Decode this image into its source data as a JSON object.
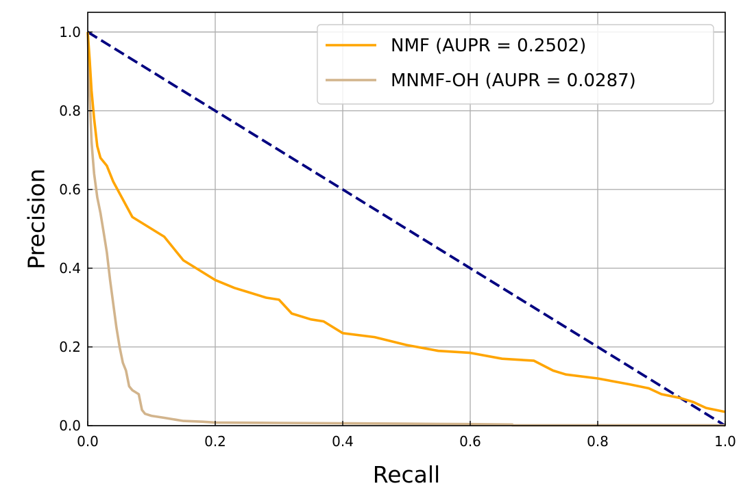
{
  "chart_data": {
    "type": "line",
    "title": "",
    "xlabel": "Recall",
    "ylabel": "Precision",
    "xlim": [
      0.0,
      1.0
    ],
    "ylim": [
      0.0,
      1.05
    ],
    "x_ticks": [
      0.0,
      0.2,
      0.4,
      0.6,
      0.8,
      1.0
    ],
    "y_ticks": [
      0.0,
      0.2,
      0.4,
      0.6,
      0.8,
      1.0
    ],
    "x_tick_labels": [
      "0.0",
      "0.2",
      "0.4",
      "0.6",
      "0.8",
      "1.0"
    ],
    "y_tick_labels": [
      "0.0",
      "0.2",
      "0.4",
      "0.6",
      "0.8",
      "1.0"
    ],
    "grid": true,
    "legend_position": "top-right",
    "series": [
      {
        "name": "NMF (AUPR = 0.2502)",
        "color": "#ffa500",
        "style": "solid",
        "x": [
          0.0,
          0.003,
          0.006,
          0.01,
          0.015,
          0.02,
          0.03,
          0.04,
          0.05,
          0.06,
          0.07,
          0.08,
          0.09,
          0.1,
          0.11,
          0.12,
          0.13,
          0.15,
          0.17,
          0.2,
          0.23,
          0.25,
          0.28,
          0.3,
          0.32,
          0.35,
          0.37,
          0.4,
          0.45,
          0.5,
          0.55,
          0.6,
          0.65,
          0.7,
          0.73,
          0.75,
          0.8,
          0.85,
          0.88,
          0.9,
          0.93,
          0.95,
          0.97,
          1.0
        ],
        "y": [
          1.0,
          0.93,
          0.85,
          0.78,
          0.71,
          0.68,
          0.66,
          0.62,
          0.59,
          0.56,
          0.53,
          0.52,
          0.51,
          0.5,
          0.49,
          0.48,
          0.46,
          0.42,
          0.4,
          0.37,
          0.35,
          0.34,
          0.325,
          0.32,
          0.285,
          0.27,
          0.265,
          0.235,
          0.225,
          0.205,
          0.19,
          0.185,
          0.17,
          0.165,
          0.14,
          0.13,
          0.12,
          0.105,
          0.095,
          0.08,
          0.07,
          0.06,
          0.045,
          0.035
        ]
      },
      {
        "name": "MNMF-OH (AUPR = 0.0287)",
        "color": "#d2b48c",
        "style": "solid",
        "x": [
          0.0,
          0.001,
          0.002,
          0.004,
          0.006,
          0.008,
          0.01,
          0.015,
          0.02,
          0.025,
          0.03,
          0.035,
          0.04,
          0.045,
          0.05,
          0.055,
          0.06,
          0.065,
          0.07,
          0.075,
          0.08,
          0.085,
          0.09,
          0.1,
          0.12,
          0.15,
          0.18,
          0.2,
          0.3,
          0.4,
          0.5,
          0.6,
          0.666,
          0.666,
          1.0
        ],
        "y": [
          1.0,
          0.95,
          0.88,
          0.8,
          0.72,
          0.68,
          0.64,
          0.58,
          0.54,
          0.49,
          0.44,
          0.37,
          0.31,
          0.25,
          0.2,
          0.16,
          0.14,
          0.1,
          0.09,
          0.085,
          0.08,
          0.04,
          0.03,
          0.025,
          0.02,
          0.012,
          0.01,
          0.008,
          0.007,
          0.006,
          0.005,
          0.004,
          0.003,
          0.001,
          0.001
        ]
      },
      {
        "name": "",
        "color": "#000080",
        "style": "dashed",
        "x": [
          0.0,
          1.0
        ],
        "y": [
          1.0,
          0.0
        ]
      }
    ]
  }
}
